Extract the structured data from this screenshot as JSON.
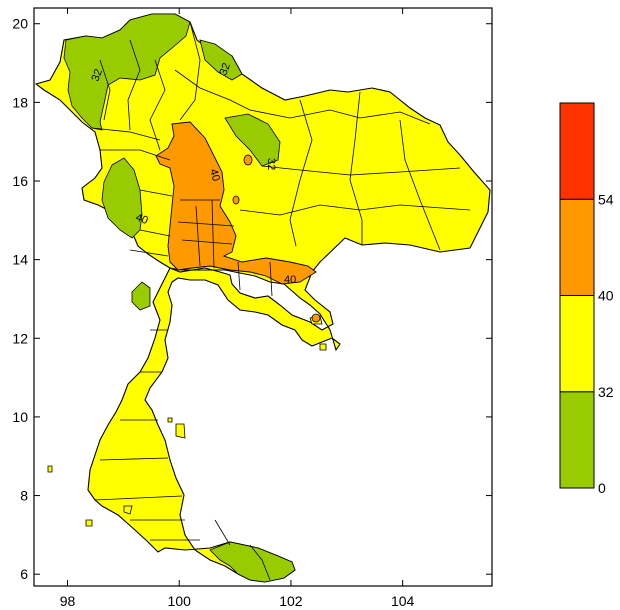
{
  "map": {
    "x_ticks": [
      {
        "value": 98,
        "label": "98"
      },
      {
        "value": 100,
        "label": "100"
      },
      {
        "value": 102,
        "label": "102"
      },
      {
        "value": 104,
        "label": "104"
      }
    ],
    "y_ticks": [
      {
        "value": 20,
        "label": "20"
      },
      {
        "value": 18,
        "label": "18"
      },
      {
        "value": 16,
        "label": "16"
      },
      {
        "value": 14,
        "label": "14"
      },
      {
        "value": 12,
        "label": "12"
      },
      {
        "value": 10,
        "label": "10"
      },
      {
        "value": 8,
        "label": "8"
      },
      {
        "value": 6,
        "label": "6"
      }
    ],
    "x_range": [
      97.4,
      105.6
    ],
    "y_range": [
      5.7,
      20.4
    ],
    "contour_labels": [
      {
        "text": "32"
      },
      {
        "text": "32"
      },
      {
        "text": "32"
      },
      {
        "text": "40"
      },
      {
        "text": "40"
      },
      {
        "text": "40"
      }
    ],
    "colors": {
      "green": "#99cc00",
      "yellow": "#ffff00",
      "orange": "#ff9900",
      "red": "#ff3300"
    }
  },
  "colorbar": {
    "bins": [
      {
        "from": 0,
        "to": 32,
        "color": "#99cc00"
      },
      {
        "from": 32,
        "to": 40,
        "color": "#ffff00"
      },
      {
        "from": 40,
        "to": 54,
        "color": "#ff9900"
      },
      {
        "from": 54,
        "to": null,
        "color": "#ff3300"
      }
    ],
    "labels": [
      {
        "text": "0"
      },
      {
        "text": "32"
      },
      {
        "text": "40"
      },
      {
        "text": "54"
      }
    ]
  }
}
